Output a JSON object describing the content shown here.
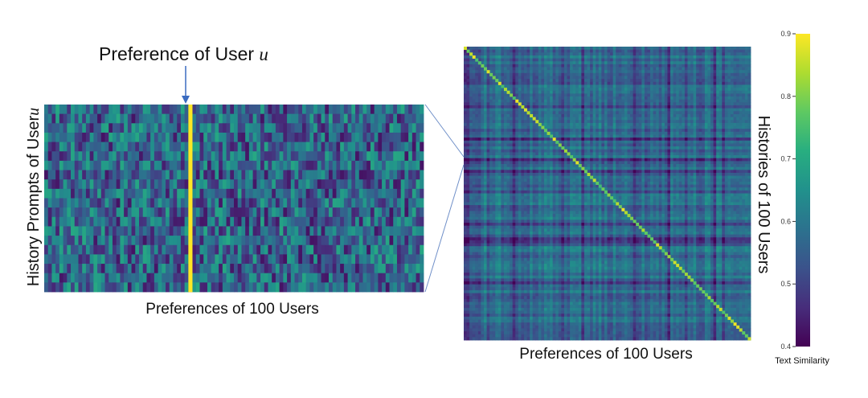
{
  "chart_data": [
    {
      "type": "heatmap",
      "title": "Preference of User",
      "title_var": "u",
      "xlabel": "Preferences of 100 Users",
      "ylabel": "History Prompts of  User",
      "ylabel_var": "u",
      "columns": 100,
      "rows": 20,
      "highlight_column": 38,
      "highlight_value": 0.9,
      "colormap": "viridis",
      "value_range": [
        0.4,
        0.9
      ]
    },
    {
      "type": "heatmap",
      "xlabel": "Preferences of 100 Users",
      "ylabel": "Histories of 100 Users",
      "columns": 100,
      "rows": 100,
      "diagonal_highlight": true,
      "colormap": "viridis",
      "colorbar": {
        "label": "Text Similarity",
        "min": 0.4,
        "max": 0.9,
        "ticks": [
          "0.9",
          "0.8",
          "0.7",
          "0.6",
          "0.5",
          "0.4"
        ]
      }
    }
  ]
}
